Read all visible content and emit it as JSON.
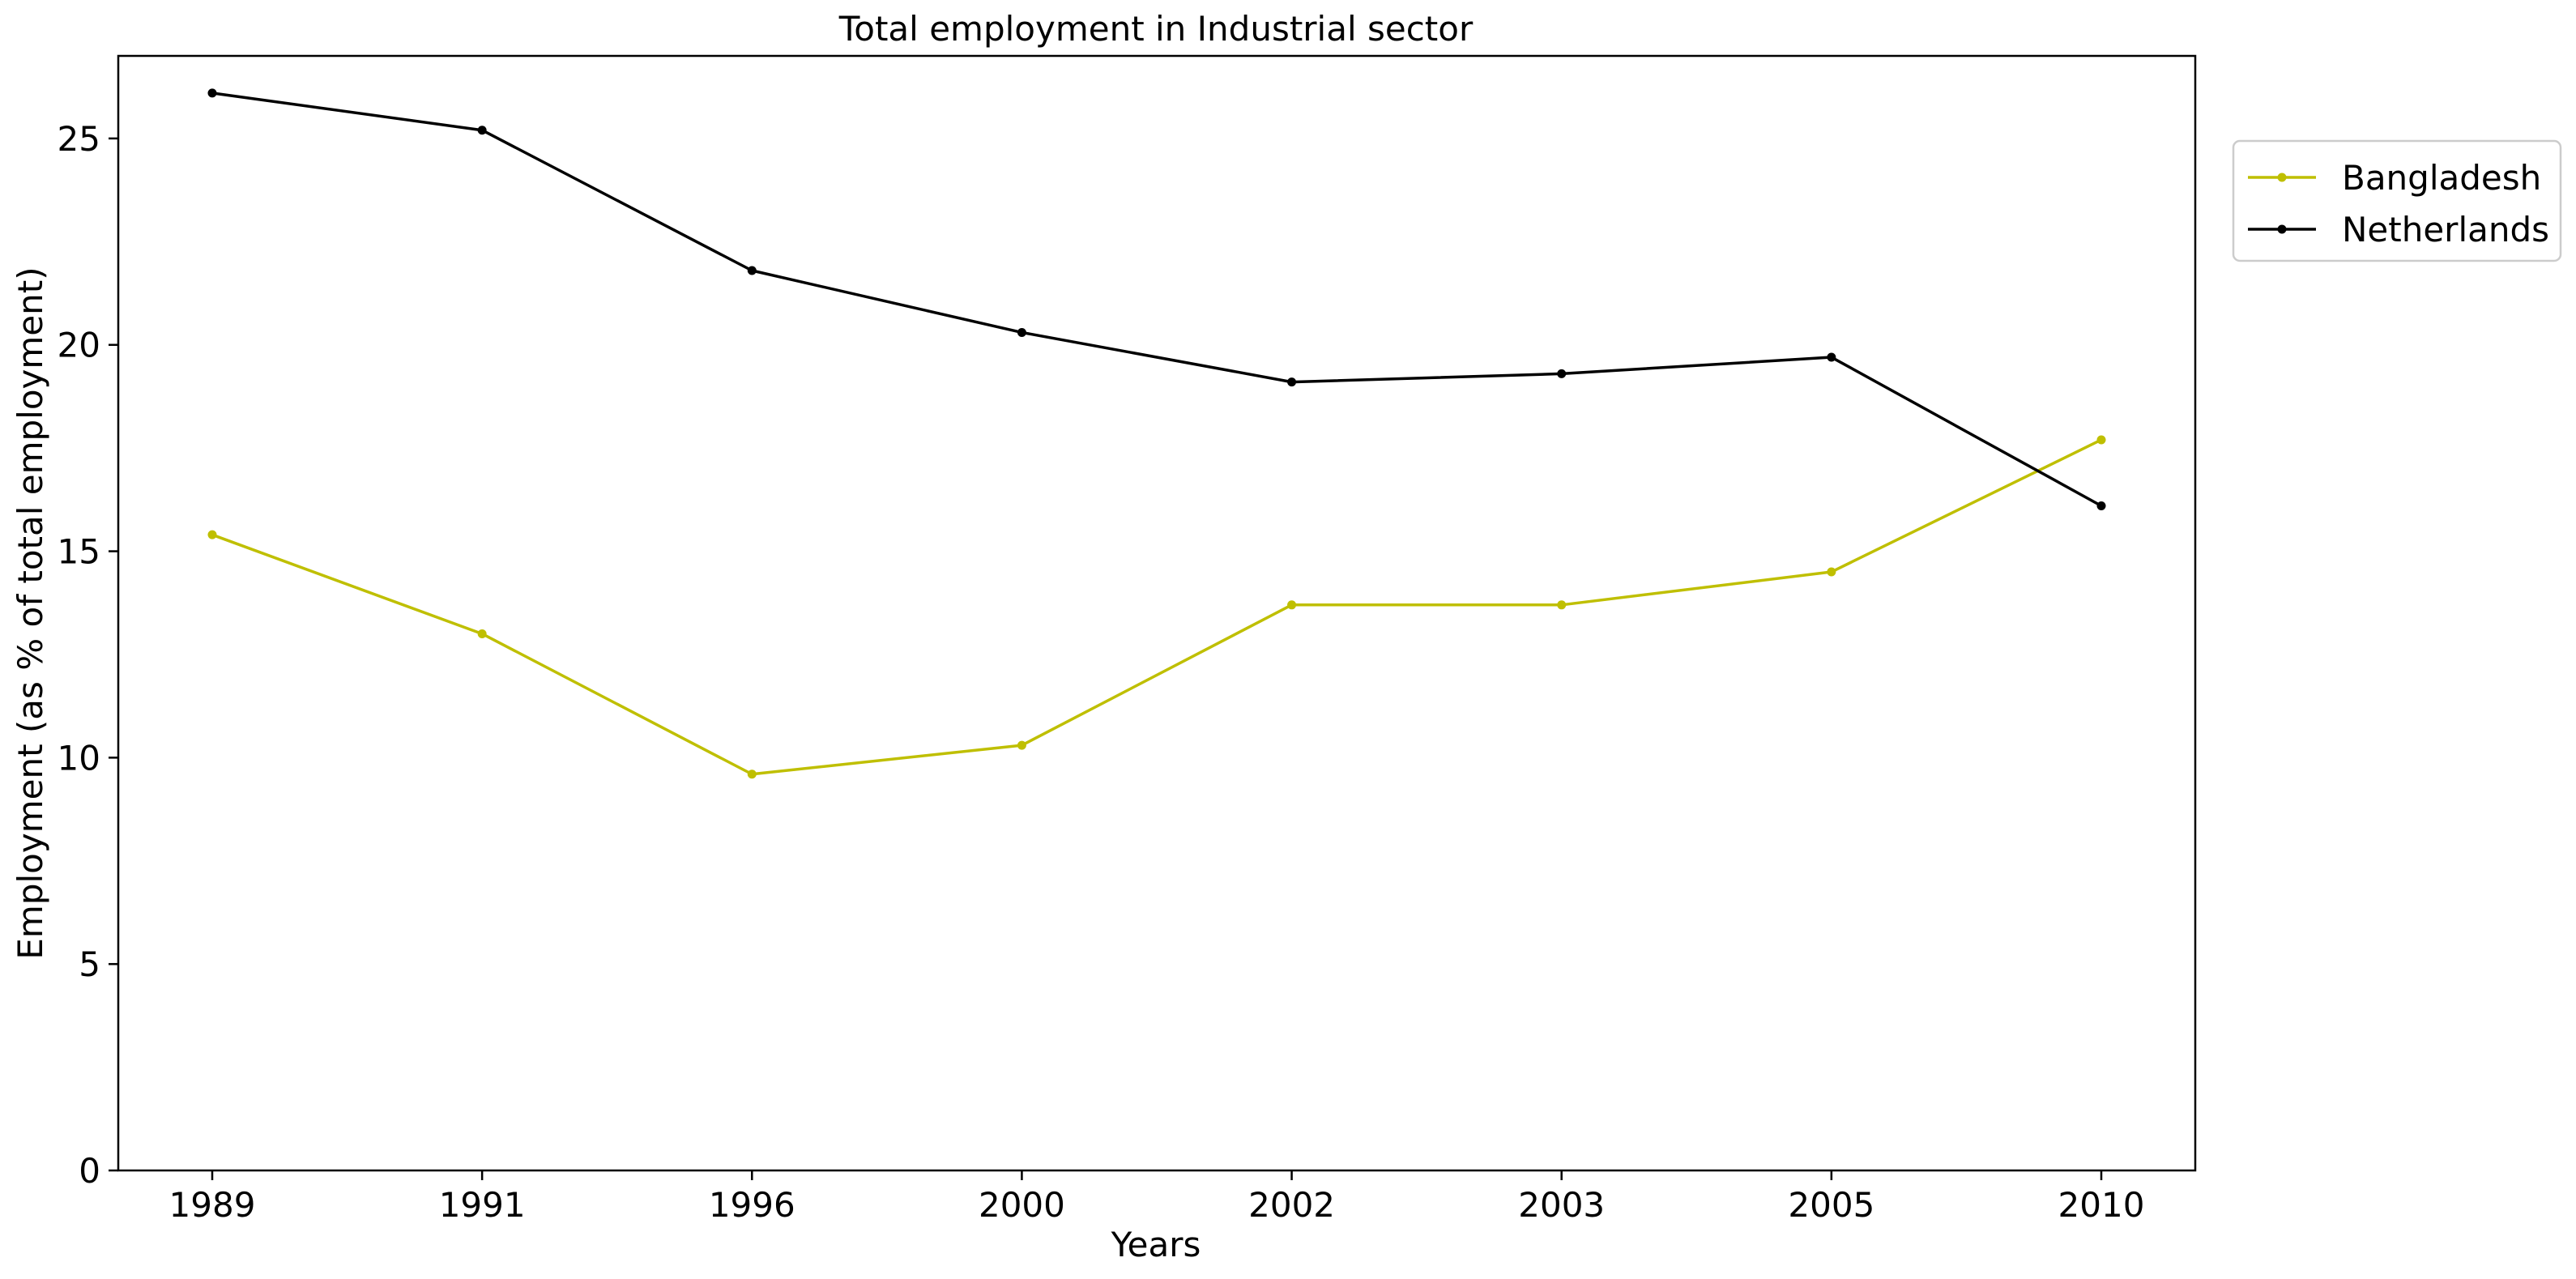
{
  "chart_data": {
    "type": "line",
    "title": "Total employment in Industrial sector",
    "xlabel": "Years",
    "ylabel": "Employment (as % of total employment)",
    "categories": [
      "1989",
      "1991",
      "1996",
      "2000",
      "2002",
      "2003",
      "2005",
      "2010"
    ],
    "yticks": [
      0,
      5,
      10,
      15,
      20,
      25
    ],
    "ylim": [
      0,
      27
    ],
    "grid": false,
    "legend_position": "outside-top-right",
    "series": [
      {
        "name": "Bangladesh",
        "color": "#bfbf00",
        "marker": "circle",
        "values": [
          15.4,
          13.0,
          9.6,
          10.3,
          13.7,
          13.7,
          14.5,
          17.7
        ]
      },
      {
        "name": "Netherlands",
        "color": "#000000",
        "marker": "circle",
        "values": [
          26.1,
          25.2,
          21.8,
          20.3,
          19.1,
          19.3,
          19.7,
          16.1
        ]
      }
    ]
  }
}
